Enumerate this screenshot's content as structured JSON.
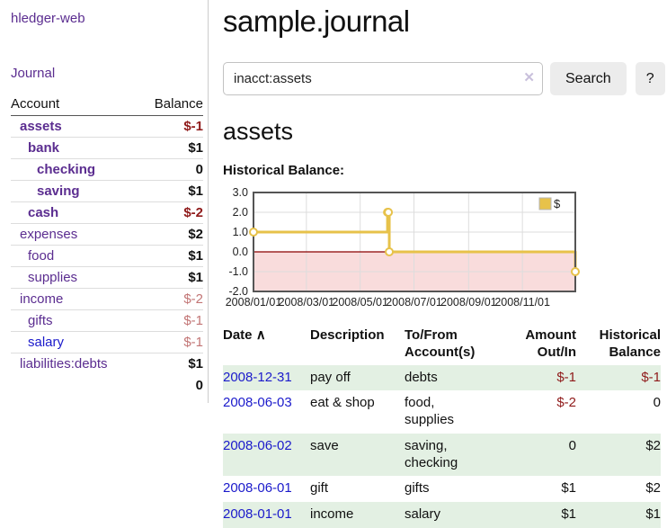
{
  "app": {
    "brand": "hledger-web",
    "nav_journal": "Journal"
  },
  "colors": {
    "link_purple": "#5b2d90",
    "link_blue": "#1b1acb",
    "negative_strong": "#8f1a1a",
    "negative_soft": "#c27575",
    "row_green": "#e3f0e3",
    "chart_gold": "#e7c24a"
  },
  "sidebar": {
    "header": {
      "account": "Account",
      "balance": "Balance"
    },
    "accounts": [
      {
        "name": "assets",
        "depth": 1,
        "in_account": true,
        "blue": false,
        "balance": "$-1",
        "balance_class": "neg-strong"
      },
      {
        "name": "bank",
        "depth": 2,
        "in_account": true,
        "blue": false,
        "balance": "$1",
        "balance_class": ""
      },
      {
        "name": "checking",
        "depth": 3,
        "in_account": true,
        "blue": false,
        "balance": "0",
        "balance_class": ""
      },
      {
        "name": "saving",
        "depth": 3,
        "in_account": true,
        "blue": false,
        "balance": "$1",
        "balance_class": ""
      },
      {
        "name": "cash",
        "depth": 2,
        "in_account": true,
        "blue": false,
        "balance": "$-2",
        "balance_class": "neg-strong"
      },
      {
        "name": "expenses",
        "depth": 1,
        "in_account": false,
        "blue": false,
        "balance": "$2",
        "balance_class": ""
      },
      {
        "name": "food",
        "depth": 2,
        "in_account": false,
        "blue": false,
        "balance": "$1",
        "balance_class": ""
      },
      {
        "name": "supplies",
        "depth": 2,
        "in_account": false,
        "blue": false,
        "balance": "$1",
        "balance_class": ""
      },
      {
        "name": "income",
        "depth": 1,
        "in_account": false,
        "blue": false,
        "balance": "$-2",
        "balance_class": "neg-soft"
      },
      {
        "name": "gifts",
        "depth": 2,
        "in_account": false,
        "blue": false,
        "balance": "$-1",
        "balance_class": "neg-soft"
      },
      {
        "name": "salary",
        "depth": 2,
        "in_account": false,
        "blue": true,
        "balance": "$-1",
        "balance_class": "neg-soft"
      },
      {
        "name": "liabilities:debts",
        "depth": 1,
        "in_account": false,
        "blue": false,
        "balance": "$1",
        "balance_class": ""
      }
    ],
    "total": "0"
  },
  "main": {
    "title": "sample.journal",
    "search": {
      "value": "inacct:assets",
      "clear_icon": "✕",
      "button": "Search",
      "help_button": "?"
    },
    "account_heading": "assets",
    "chart_label": "Historical Balance:"
  },
  "chart_data": {
    "type": "line",
    "title": "Historical Balance:",
    "series": [
      {
        "name": "$",
        "color": "#e7c24a",
        "step": true,
        "points": [
          {
            "date": "2008-01-01",
            "value": 1
          },
          {
            "date": "2008-06-01",
            "value": 2
          },
          {
            "date": "2008-06-02",
            "value": 2
          },
          {
            "date": "2008-06-03",
            "value": 0
          },
          {
            "date": "2008-12-31",
            "value": -1
          }
        ]
      }
    ],
    "x_ticks": [
      "2008/01/01",
      "2008/03/01",
      "2008/05/01",
      "2008/07/01",
      "2008/09/01",
      "2008/11/01"
    ],
    "y_ticks": [
      3.0,
      2.0,
      1.0,
      0.0,
      -1.0,
      -2.0
    ],
    "ylim": [
      -2,
      3
    ],
    "grid": true,
    "negative_fill": "#f9dcdc",
    "zero_line_color": "#8b0000",
    "legend": {
      "label": "$",
      "position": "top-right"
    }
  },
  "register": {
    "headers": {
      "date": "Date",
      "sort_icon": "∧",
      "description": "Description",
      "accounts": "To/From Account(s)",
      "amount": "Amount Out/In",
      "balance": "Historical Balance"
    },
    "rows": [
      {
        "date": "2008-12-31",
        "description": "pay off",
        "accounts": "debts",
        "amount": "$-1",
        "amount_neg": true,
        "balance": "$-1",
        "balance_neg": true,
        "shaded": true
      },
      {
        "date": "2008-06-03",
        "description": "eat & shop",
        "accounts": "food, supplies",
        "amount": "$-2",
        "amount_neg": true,
        "balance": "0",
        "balance_neg": false,
        "shaded": false
      },
      {
        "date": "2008-06-02",
        "description": "save",
        "accounts": "saving, checking",
        "amount": "0",
        "amount_neg": false,
        "balance": "$2",
        "balance_neg": false,
        "shaded": true
      },
      {
        "date": "2008-06-01",
        "description": "gift",
        "accounts": "gifts",
        "amount": "$1",
        "amount_neg": false,
        "balance": "$2",
        "balance_neg": false,
        "shaded": false
      },
      {
        "date": "2008-01-01",
        "description": "income",
        "accounts": "salary",
        "amount": "$1",
        "amount_neg": false,
        "balance": "$1",
        "balance_neg": false,
        "shaded": true
      }
    ]
  }
}
